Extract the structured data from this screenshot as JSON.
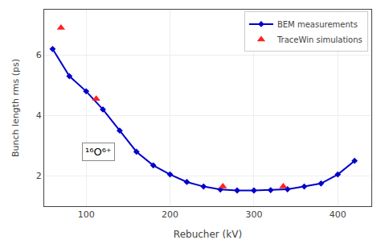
{
  "chart_data": {
    "type": "line",
    "xlabel": "Rebucher (kV)",
    "ylabel": "Bunch length rms (ps)",
    "series": [
      {
        "name": "BEM measurements",
        "type": "line",
        "color": "#0000cc",
        "marker": "diamond",
        "x": [
          60,
          80,
          100,
          120,
          140,
          160,
          180,
          200,
          220,
          240,
          260,
          280,
          300,
          320,
          340,
          360,
          380,
          400,
          420
        ],
        "values": [
          6.2,
          5.3,
          4.8,
          4.2,
          3.5,
          2.8,
          2.35,
          2.05,
          1.8,
          1.65,
          1.55,
          1.52,
          1.52,
          1.53,
          1.56,
          1.65,
          1.75,
          2.05,
          2.5
        ]
      },
      {
        "name": "TraceWin simulations",
        "type": "scatter",
        "color": "#ff2222",
        "marker": "triangle-up",
        "x": [
          70,
          112,
          263,
          335
        ],
        "values": [
          6.9,
          4.55,
          1.65,
          1.65
        ]
      }
    ],
    "annotations": [
      {
        "text": "¹⁶O⁶⁺",
        "x": 115,
        "y": 2.8
      }
    ],
    "xlim": [
      50,
      440
    ],
    "xticks": [
      100,
      200,
      300,
      400
    ],
    "ylim": [
      1.0,
      7.5
    ],
    "yticks": [
      2,
      4,
      6
    ],
    "grid": true,
    "legend": "upper right"
  }
}
